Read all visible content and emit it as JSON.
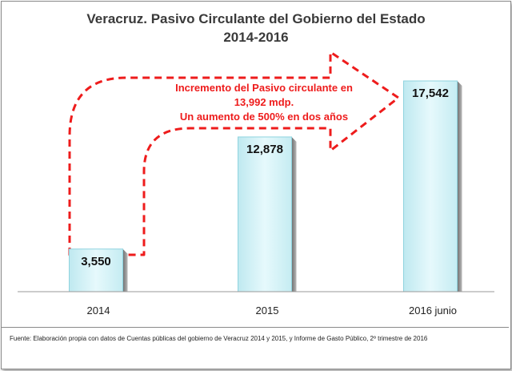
{
  "chart_data": {
    "type": "bar",
    "title": "Veracruz. Pasivo Circulante del Gobierno del Estado",
    "subtitle": "2014-2016",
    "categories": [
      "2014",
      "2015",
      "2016 junio"
    ],
    "values": [
      3550,
      12878,
      17542
    ],
    "value_labels": [
      "3,550",
      "12,878",
      "17,542"
    ],
    "ylim": [
      0,
      17542
    ],
    "grid": false,
    "bar_color": "#d9f4f8",
    "annotation": {
      "lines": [
        "Incremento del Pasivo circulante en",
        "13,992 mdp.",
        "Un aumento de 500% en dos años"
      ],
      "color": "#ee1c1c"
    }
  },
  "footnote": "Fuente: Elaboración propia con datos de Cuentas públicas del gobierno de Veracruz 2014 y 2015, y Informe de Gasto Público, 2º trimestre de 2016"
}
